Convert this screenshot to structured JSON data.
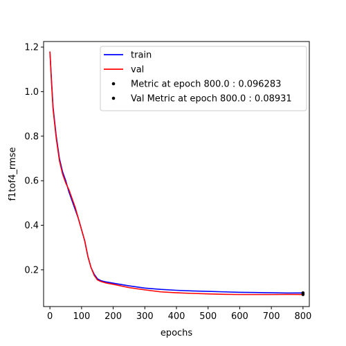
{
  "chart_data": {
    "type": "line",
    "xlabel": "epochs",
    "ylabel": "f1tof4_rmse",
    "xlim": [
      -20,
      820
    ],
    "ylim": [
      0.035,
      1.225
    ],
    "xticks": [
      0,
      100,
      200,
      300,
      400,
      500,
      600,
      700,
      800
    ],
    "xtick_labels": [
      "0",
      "100",
      "200",
      "300",
      "400",
      "500",
      "600",
      "700",
      "800"
    ],
    "yticks": [
      0.2,
      0.4,
      0.6,
      0.8,
      1.0,
      1.2
    ],
    "ytick_labels": [
      "0.2",
      "0.4",
      "0.6",
      "0.8",
      "1.0",
      "1.2"
    ],
    "grid": false,
    "legend_position": "top-right",
    "series": [
      {
        "name": "train",
        "color": "#0000ff",
        "x": [
          0,
          5,
          10,
          20,
          30,
          40,
          50,
          60,
          70,
          80,
          90,
          100,
          110,
          120,
          130,
          140,
          150,
          160,
          170,
          180,
          200,
          250,
          300,
          350,
          400,
          450,
          500,
          550,
          600,
          650,
          700,
          750,
          800
        ],
        "y": [
          1.18,
          1.05,
          0.93,
          0.8,
          0.7,
          0.64,
          0.6,
          0.55,
          0.51,
          0.47,
          0.43,
          0.38,
          0.33,
          0.26,
          0.21,
          0.18,
          0.16,
          0.152,
          0.148,
          0.145,
          0.14,
          0.128,
          0.118,
          0.112,
          0.108,
          0.105,
          0.103,
          0.101,
          0.099,
          0.098,
          0.097,
          0.096,
          0.0963
        ]
      },
      {
        "name": "val",
        "color": "#ff0000",
        "x": [
          0,
          5,
          10,
          20,
          30,
          40,
          50,
          60,
          70,
          80,
          90,
          100,
          110,
          120,
          130,
          140,
          150,
          160,
          170,
          180,
          200,
          250,
          300,
          350,
          400,
          450,
          500,
          550,
          600,
          650,
          700,
          750,
          800
        ],
        "y": [
          1.18,
          1.04,
          0.92,
          0.79,
          0.69,
          0.63,
          0.59,
          0.56,
          0.52,
          0.48,
          0.43,
          0.38,
          0.33,
          0.26,
          0.21,
          0.175,
          0.155,
          0.148,
          0.144,
          0.14,
          0.135,
          0.12,
          0.11,
          0.101,
          0.097,
          0.094,
          0.092,
          0.09,
          0.089,
          0.089,
          0.089,
          0.0895,
          0.0893
        ]
      }
    ],
    "markers": [
      {
        "label": "Metric at epoch 800.0 : 0.096283",
        "x": 800,
        "y": 0.096283,
        "color": "#000000"
      },
      {
        "label": "Val Metric at epoch 800.0 : 0.08931",
        "x": 800,
        "y": 0.08931,
        "color": "#000000"
      }
    ]
  }
}
